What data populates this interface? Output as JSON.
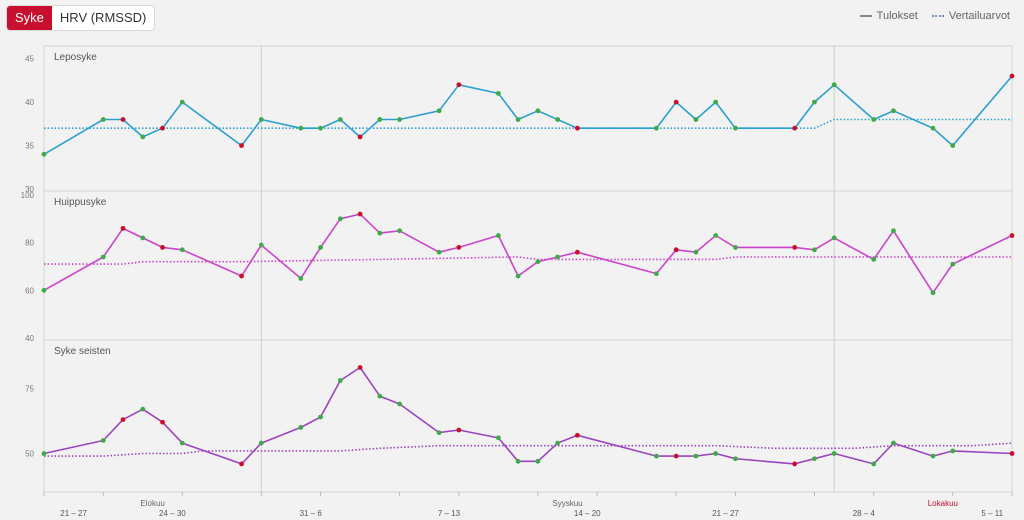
{
  "tabs": [
    {
      "label": "Syke",
      "active": true
    },
    {
      "label": "HRV (RMSSD)",
      "active": false
    }
  ],
  "legend": {
    "results": "Tulokset",
    "reference": "Vertailuarvot"
  },
  "colors": {
    "marker_green": "#3faa48",
    "marker_red": "#c8102e",
    "month_label_highlight": "#c8102e"
  },
  "chart_data": {
    "type": "line",
    "x_axis": {
      "week_labels": [
        "21 – 27",
        "24 – 30",
        "31 – 6",
        "7 – 13",
        "14 – 20",
        "21 – 27",
        "28 – 4",
        "5 – 11"
      ],
      "month_labels": [
        "Elokuu",
        "Syyskuu",
        "Lokakuu"
      ],
      "highlighted_month": "Lokakuu",
      "points": 50
    },
    "panels": [
      {
        "title": "Leposyke",
        "color": "#2b9fd1",
        "yticks": [
          30,
          35,
          40,
          45
        ],
        "ylim": [
          30,
          46
        ],
        "results": [
          [
            0,
            34,
            "g"
          ],
          [
            3,
            38,
            "g"
          ],
          [
            4,
            38,
            "r"
          ],
          [
            5,
            36,
            "g"
          ],
          [
            6,
            37,
            "r"
          ],
          [
            7,
            40,
            "g"
          ],
          [
            10,
            35,
            "r"
          ],
          [
            11,
            38,
            "g"
          ],
          [
            13,
            37,
            "g"
          ],
          [
            14,
            37,
            "g"
          ],
          [
            15,
            38,
            "g"
          ],
          [
            16,
            36,
            "r"
          ],
          [
            17,
            38,
            "g"
          ],
          [
            18,
            38,
            "g"
          ],
          [
            20,
            39,
            "g"
          ],
          [
            21,
            42,
            "r"
          ],
          [
            23,
            41,
            "g"
          ],
          [
            24,
            38,
            "g"
          ],
          [
            25,
            39,
            "g"
          ],
          [
            26,
            38,
            "g"
          ],
          [
            27,
            37,
            "r"
          ],
          [
            31,
            37,
            "g"
          ],
          [
            32,
            40,
            "r"
          ],
          [
            33,
            38,
            "g"
          ],
          [
            34,
            40,
            "g"
          ],
          [
            35,
            37,
            "g"
          ],
          [
            38,
            37,
            "r"
          ],
          [
            39,
            40,
            "g"
          ],
          [
            40,
            42,
            "g"
          ],
          [
            42,
            38,
            "g"
          ],
          [
            43,
            39,
            "g"
          ],
          [
            45,
            37,
            "g"
          ],
          [
            46,
            35,
            "g"
          ],
          [
            49,
            43,
            "r"
          ]
        ],
        "reference": [
          [
            0,
            37
          ],
          [
            38,
            37
          ],
          [
            39,
            37
          ],
          [
            40,
            38
          ],
          [
            49,
            38
          ]
        ]
      },
      {
        "title": "Huippusyke",
        "color": "#cc44cc",
        "yticks": [
          40,
          60,
          80,
          100
        ],
        "ylim": [
          40,
          100
        ],
        "results": [
          [
            0,
            60,
            "g"
          ],
          [
            3,
            74,
            "g"
          ],
          [
            4,
            86,
            "r"
          ],
          [
            5,
            82,
            "g"
          ],
          [
            6,
            78,
            "r"
          ],
          [
            7,
            77,
            "g"
          ],
          [
            10,
            66,
            "r"
          ],
          [
            11,
            79,
            "g"
          ],
          [
            13,
            65,
            "g"
          ],
          [
            14,
            78,
            "g"
          ],
          [
            15,
            90,
            "g"
          ],
          [
            16,
            92,
            "r"
          ],
          [
            17,
            84,
            "g"
          ],
          [
            18,
            85,
            "g"
          ],
          [
            20,
            76,
            "g"
          ],
          [
            21,
            78,
            "r"
          ],
          [
            23,
            83,
            "g"
          ],
          [
            24,
            66,
            "g"
          ],
          [
            25,
            72,
            "g"
          ],
          [
            26,
            74,
            "g"
          ],
          [
            27,
            76,
            "r"
          ],
          [
            31,
            67,
            "g"
          ],
          [
            32,
            77,
            "r"
          ],
          [
            33,
            76,
            "g"
          ],
          [
            34,
            83,
            "g"
          ],
          [
            35,
            78,
            "g"
          ],
          [
            38,
            78,
            "r"
          ],
          [
            39,
            77,
            "g"
          ],
          [
            40,
            82,
            "g"
          ],
          [
            42,
            73,
            "g"
          ],
          [
            43,
            85,
            "g"
          ],
          [
            45,
            59,
            "g"
          ],
          [
            46,
            71,
            "g"
          ],
          [
            49,
            83,
            "r"
          ]
        ],
        "reference": [
          [
            0,
            71
          ],
          [
            4,
            71
          ],
          [
            5,
            72
          ],
          [
            10,
            72
          ],
          [
            17,
            73
          ],
          [
            24,
            74
          ],
          [
            25,
            73
          ],
          [
            27,
            73
          ],
          [
            34,
            73
          ],
          [
            35,
            74
          ],
          [
            49,
            74
          ]
        ]
      },
      {
        "title": "Syke seisten",
        "color": "#9b44c0",
        "yticks": [
          50,
          75
        ],
        "ylim": [
          36,
          92
        ],
        "results": [
          [
            0,
            50,
            "g"
          ],
          [
            3,
            55,
            "g"
          ],
          [
            4,
            63,
            "r"
          ],
          [
            5,
            67,
            "g"
          ],
          [
            6,
            62,
            "r"
          ],
          [
            7,
            54,
            "g"
          ],
          [
            10,
            46,
            "r"
          ],
          [
            11,
            54,
            "g"
          ],
          [
            13,
            60,
            "g"
          ],
          [
            14,
            64,
            "g"
          ],
          [
            15,
            78,
            "g"
          ],
          [
            16,
            83,
            "r"
          ],
          [
            17,
            72,
            "g"
          ],
          [
            18,
            69,
            "g"
          ],
          [
            20,
            58,
            "g"
          ],
          [
            21,
            59,
            "r"
          ],
          [
            23,
            56,
            "g"
          ],
          [
            24,
            47,
            "g"
          ],
          [
            25,
            47,
            "g"
          ],
          [
            26,
            54,
            "g"
          ],
          [
            27,
            57,
            "r"
          ],
          [
            31,
            49,
            "g"
          ],
          [
            32,
            49,
            "r"
          ],
          [
            33,
            49,
            "g"
          ],
          [
            34,
            50,
            "g"
          ],
          [
            35,
            48,
            "g"
          ],
          [
            38,
            46,
            "r"
          ],
          [
            39,
            48,
            "g"
          ],
          [
            40,
            50,
            "g"
          ],
          [
            42,
            46,
            "g"
          ],
          [
            43,
            54,
            "g"
          ],
          [
            45,
            49,
            "g"
          ],
          [
            46,
            51,
            "g"
          ],
          [
            49,
            50,
            "r"
          ]
        ],
        "reference": [
          [
            0,
            49
          ],
          [
            3,
            49
          ],
          [
            5,
            50
          ],
          [
            7,
            50
          ],
          [
            8,
            51
          ],
          [
            15,
            51
          ],
          [
            17,
            52
          ],
          [
            20,
            53
          ],
          [
            34,
            53
          ],
          [
            37,
            52
          ],
          [
            41,
            52
          ],
          [
            43,
            53
          ],
          [
            47,
            53
          ],
          [
            49,
            54
          ]
        ]
      }
    ]
  }
}
